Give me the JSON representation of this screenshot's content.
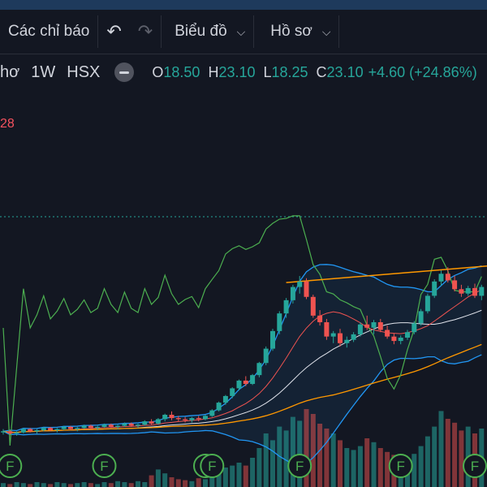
{
  "toolbar": {
    "indicators_label": "Các chỉ báo",
    "undo_icon": "undo-icon",
    "redo_icon": "redo-icon",
    "chart_menu_label": "Biểu đồ",
    "profile_menu_label": "Hồ sơ"
  },
  "legend": {
    "symbol_fragment": "hơ",
    "interval": "1W",
    "exchange": "HSX",
    "open_key": "O",
    "open": "18.50",
    "high_key": "H",
    "high": "23.10",
    "low_key": "L",
    "low": "18.25",
    "close_key": "C",
    "close": "23.10",
    "change": "+4.60 (+24.86%)"
  },
  "indicator_value": "28",
  "colors": {
    "background": "#131722",
    "up": "#26a69a",
    "down": "#ef5350",
    "rsi_line": "#4caf50",
    "bb_line": "#2196f3",
    "ma_orange": "#ff9800",
    "trend_line": "#ff9800",
    "earnings_badge": "#4caf50"
  },
  "chart_data": {
    "type": "candlestick",
    "interval": "1W",
    "ylim": [
      15,
      36
    ],
    "candles": [
      [
        16.2,
        16.5,
        16.0,
        16.3
      ],
      [
        16.3,
        16.4,
        16.0,
        16.1
      ],
      [
        16.1,
        16.3,
        15.9,
        16.2
      ],
      [
        16.2,
        16.6,
        16.1,
        16.5
      ],
      [
        16.5,
        16.6,
        16.2,
        16.3
      ],
      [
        16.3,
        16.5,
        16.1,
        16.4
      ],
      [
        16.4,
        16.7,
        16.3,
        16.6
      ],
      [
        16.6,
        16.7,
        16.3,
        16.4
      ],
      [
        16.4,
        16.6,
        16.2,
        16.5
      ],
      [
        16.5,
        16.8,
        16.4,
        16.7
      ],
      [
        16.7,
        16.8,
        16.4,
        16.5
      ],
      [
        16.5,
        16.7,
        16.3,
        16.6
      ],
      [
        16.6,
        16.9,
        16.5,
        16.8
      ],
      [
        16.8,
        16.9,
        16.5,
        16.6
      ],
      [
        16.6,
        16.8,
        16.4,
        16.7
      ],
      [
        16.7,
        17.0,
        16.6,
        16.9
      ],
      [
        16.9,
        17.0,
        16.6,
        16.7
      ],
      [
        16.7,
        16.9,
        16.5,
        16.8
      ],
      [
        16.8,
        17.1,
        16.7,
        17.0
      ],
      [
        17.0,
        17.1,
        16.7,
        16.8
      ],
      [
        16.8,
        17.0,
        16.6,
        16.9
      ],
      [
        16.9,
        17.3,
        16.8,
        17.2
      ],
      [
        17.2,
        17.4,
        16.9,
        17.0
      ],
      [
        17.0,
        17.5,
        16.9,
        17.4
      ],
      [
        17.4,
        17.9,
        17.2,
        17.8
      ],
      [
        17.8,
        18.1,
        17.3,
        17.5
      ],
      [
        17.5,
        17.7,
        17.2,
        17.4
      ],
      [
        17.4,
        17.6,
        17.1,
        17.3
      ],
      [
        17.3,
        17.6,
        17.1,
        17.5
      ],
      [
        17.5,
        17.7,
        17.2,
        17.4
      ],
      [
        17.4,
        17.8,
        17.3,
        17.7
      ],
      [
        17.7,
        18.3,
        17.6,
        18.2
      ],
      [
        18.2,
        19.0,
        18.1,
        18.9
      ],
      [
        18.9,
        19.6,
        18.7,
        19.5
      ],
      [
        19.5,
        20.3,
        19.3,
        20.2
      ],
      [
        20.2,
        21.0,
        20.0,
        20.9
      ],
      [
        20.9,
        21.3,
        20.4,
        20.6
      ],
      [
        20.6,
        21.5,
        20.5,
        21.4
      ],
      [
        21.4,
        22.6,
        21.2,
        22.5
      ],
      [
        22.5,
        24.0,
        22.3,
        23.8
      ],
      [
        23.8,
        25.6,
        23.6,
        25.4
      ],
      [
        25.4,
        27.2,
        25.1,
        27.0
      ],
      [
        27.0,
        28.4,
        26.6,
        28.2
      ],
      [
        28.2,
        29.6,
        27.9,
        29.4
      ],
      [
        29.4,
        30.4,
        28.8,
        29.9
      ],
      [
        29.9,
        30.2,
        28.3,
        28.5
      ],
      [
        28.5,
        28.7,
        26.6,
        26.8
      ],
      [
        26.8,
        27.3,
        25.9,
        26.2
      ],
      [
        26.2,
        26.5,
        24.6,
        24.9
      ],
      [
        24.9,
        25.4,
        24.3,
        25.2
      ],
      [
        25.2,
        25.6,
        24.0,
        24.3
      ],
      [
        24.3,
        24.9,
        23.9,
        24.6
      ],
      [
        24.6,
        25.3,
        24.4,
        25.1
      ],
      [
        25.1,
        26.2,
        24.9,
        26.0
      ],
      [
        26.0,
        26.8,
        25.5,
        25.7
      ],
      [
        25.7,
        26.4,
        25.1,
        26.2
      ],
      [
        26.2,
        26.5,
        25.3,
        25.5
      ],
      [
        25.5,
        25.9,
        24.7,
        24.9
      ],
      [
        24.9,
        25.2,
        24.2,
        24.5
      ],
      [
        24.5,
        25.0,
        24.2,
        24.8
      ],
      [
        24.8,
        25.5,
        24.6,
        25.3
      ],
      [
        25.3,
        26.3,
        25.1,
        26.1
      ],
      [
        26.1,
        27.4,
        25.9,
        27.2
      ],
      [
        27.2,
        28.8,
        27.0,
        28.6
      ],
      [
        28.6,
        30.1,
        28.4,
        29.9
      ],
      [
        29.9,
        30.9,
        29.5,
        30.6
      ],
      [
        30.6,
        31.2,
        29.8,
        30.0
      ],
      [
        30.0,
        30.4,
        29.0,
        29.2
      ],
      [
        29.2,
        29.6,
        28.5,
        28.8
      ],
      [
        28.8,
        29.5,
        28.6,
        29.3
      ],
      [
        29.3,
        29.7,
        28.4,
        28.6
      ],
      [
        28.6,
        29.6,
        28.2,
        29.4
      ]
    ],
    "volume": [
      0.04,
      0.03,
      0.05,
      0.04,
      0.03,
      0.05,
      0.04,
      0.03,
      0.05,
      0.04,
      0.03,
      0.04,
      0.05,
      0.04,
      0.03,
      0.05,
      0.04,
      0.06,
      0.05,
      0.04,
      0.06,
      0.05,
      0.12,
      0.18,
      0.14,
      0.1,
      0.08,
      0.07,
      0.06,
      0.09,
      0.08,
      0.1,
      0.13,
      0.2,
      0.22,
      0.25,
      0.22,
      0.3,
      0.4,
      0.55,
      0.48,
      0.62,
      0.58,
      0.72,
      0.68,
      0.8,
      0.75,
      0.65,
      0.6,
      0.55,
      0.48,
      0.4,
      0.38,
      0.42,
      0.5,
      0.46,
      0.4,
      0.36,
      0.33,
      0.3,
      0.28,
      0.34,
      0.42,
      0.52,
      0.62,
      0.78,
      0.7,
      0.66,
      0.58,
      0.62,
      0.55,
      0.6
    ],
    "earnings_markers": [
      {
        "index": 1,
        "label": "F"
      },
      {
        "index": 15,
        "label": "F"
      },
      {
        "index": 30,
        "label": "F"
      },
      {
        "index": 31,
        "label": "F"
      },
      {
        "index": 44,
        "label": "F"
      },
      {
        "index": 59,
        "label": "F"
      },
      {
        "index": 73,
        "label": "F"
      }
    ]
  }
}
